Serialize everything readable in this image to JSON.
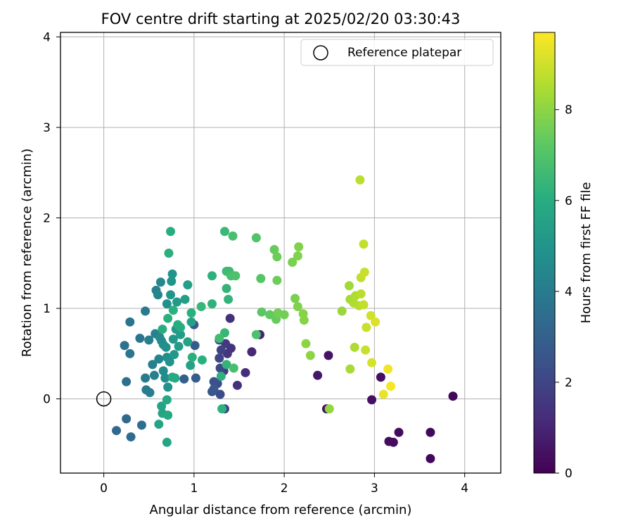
{
  "chart_data": {
    "type": "scatter",
    "title": "FOV centre drift starting at 2025/02/20 03:30:43",
    "xlabel": "Angular distance from reference (arcmin)",
    "ylabel": "Rotation from reference (arcmin)",
    "xlim": [
      -0.48,
      4.4
    ],
    "ylim": [
      -0.82,
      4.05
    ],
    "xticks": [
      0,
      1,
      2,
      3,
      4
    ],
    "yticks": [
      0,
      1,
      2,
      3,
      4
    ],
    "grid": true,
    "legend": {
      "placement": "top-right",
      "entries": [
        "Reference platepar"
      ]
    },
    "reference_point": {
      "x": 0,
      "y": 0,
      "label": "Reference platepar"
    },
    "colorbar": {
      "label": "Hours from first FF file",
      "colormap": "viridis",
      "range": [
        0,
        9.7
      ],
      "ticks": [
        0,
        2,
        4,
        6,
        8
      ]
    },
    "points": [
      {
        "x": 3.87,
        "y": 0.03,
        "c": 0.2
      },
      {
        "x": 3.62,
        "y": -0.37,
        "c": 0.2
      },
      {
        "x": 3.62,
        "y": -0.66,
        "c": 0.2
      },
      {
        "x": 3.27,
        "y": -0.37,
        "c": 0.3
      },
      {
        "x": 3.21,
        "y": -0.48,
        "c": 0.3
      },
      {
        "x": 3.16,
        "y": -0.47,
        "c": 0.3
      },
      {
        "x": 3.07,
        "y": 0.24,
        "c": 0.4
      },
      {
        "x": 2.97,
        "y": -0.01,
        "c": 0.4
      },
      {
        "x": 2.49,
        "y": 0.48,
        "c": 0.5
      },
      {
        "x": 2.47,
        "y": -0.11,
        "c": 0.5
      },
      {
        "x": 2.37,
        "y": 0.26,
        "c": 0.6
      },
      {
        "x": 1.73,
        "y": 0.71,
        "c": 1.0
      },
      {
        "x": 1.64,
        "y": 0.52,
        "c": 1.1
      },
      {
        "x": 1.57,
        "y": 0.29,
        "c": 1.2
      },
      {
        "x": 1.48,
        "y": 0.15,
        "c": 1.3
      },
      {
        "x": 1.4,
        "y": 0.89,
        "c": 1.3
      },
      {
        "x": 1.41,
        "y": 0.56,
        "c": 1.4
      },
      {
        "x": 1.37,
        "y": 0.5,
        "c": 1.5
      },
      {
        "x": 1.35,
        "y": 0.61,
        "c": 1.6
      },
      {
        "x": 1.33,
        "y": 0.31,
        "c": 1.7
      },
      {
        "x": 1.34,
        "y": -0.11,
        "c": 1.8
      },
      {
        "x": 1.3,
        "y": 0.54,
        "c": 1.9
      },
      {
        "x": 1.28,
        "y": 0.45,
        "c": 2.0
      },
      {
        "x": 1.29,
        "y": 0.34,
        "c": 2.1
      },
      {
        "x": 1.28,
        "y": 0.65,
        "c": 2.2
      },
      {
        "x": 1.29,
        "y": 0.05,
        "c": 2.2
      },
      {
        "x": 1.26,
        "y": 0.17,
        "c": 2.3
      },
      {
        "x": 1.22,
        "y": 0.19,
        "c": 2.4
      },
      {
        "x": 1.2,
        "y": 0.08,
        "c": 2.5
      },
      {
        "x": 1.22,
        "y": 0.11,
        "c": 2.6
      },
      {
        "x": 1.0,
        "y": 0.82,
        "c": 2.7
      },
      {
        "x": 1.01,
        "y": 0.59,
        "c": 2.8
      },
      {
        "x": 1.02,
        "y": 0.23,
        "c": 2.8
      },
      {
        "x": 0.89,
        "y": 0.22,
        "c": 3.0
      },
      {
        "x": 0.14,
        "y": -0.35,
        "c": 3.3
      },
      {
        "x": 0.25,
        "y": -0.22,
        "c": 3.3
      },
      {
        "x": 0.3,
        "y": -0.42,
        "c": 3.4
      },
      {
        "x": 0.42,
        "y": -0.29,
        "c": 3.5
      },
      {
        "x": 0.25,
        "y": 0.19,
        "c": 3.5
      },
      {
        "x": 0.23,
        "y": 0.59,
        "c": 3.6
      },
      {
        "x": 0.29,
        "y": 0.85,
        "c": 3.7
      },
      {
        "x": 0.29,
        "y": 0.5,
        "c": 3.8
      },
      {
        "x": 0.4,
        "y": 0.67,
        "c": 3.8
      },
      {
        "x": 0.46,
        "y": 0.97,
        "c": 3.9
      },
      {
        "x": 0.46,
        "y": 0.23,
        "c": 4.0
      },
      {
        "x": 0.47,
        "y": 0.1,
        "c": 4.0
      },
      {
        "x": 0.5,
        "y": 0.65,
        "c": 4.1
      },
      {
        "x": 0.51,
        "y": 0.07,
        "c": 4.1
      },
      {
        "x": 0.54,
        "y": 0.38,
        "c": 4.2
      },
      {
        "x": 0.56,
        "y": 0.26,
        "c": 4.2
      },
      {
        "x": 0.57,
        "y": 0.72,
        "c": 4.3
      },
      {
        "x": 0.58,
        "y": 1.2,
        "c": 4.3
      },
      {
        "x": 0.6,
        "y": 1.15,
        "c": 4.4
      },
      {
        "x": 0.61,
        "y": 0.44,
        "c": 4.4
      },
      {
        "x": 0.62,
        "y": 0.68,
        "c": 4.5
      },
      {
        "x": 0.63,
        "y": 1.29,
        "c": 4.5
      },
      {
        "x": 0.64,
        "y": 0.64,
        "c": 4.6
      },
      {
        "x": 0.66,
        "y": 0.31,
        "c": 4.6
      },
      {
        "x": 0.66,
        "y": 0.6,
        "c": 4.7
      },
      {
        "x": 0.68,
        "y": 0.23,
        "c": 4.7
      },
      {
        "x": 0.69,
        "y": 0.57,
        "c": 4.8
      },
      {
        "x": 0.7,
        "y": 0.46,
        "c": 4.8
      },
      {
        "x": 0.7,
        "y": 1.05,
        "c": 4.8
      },
      {
        "x": 0.71,
        "y": 0.13,
        "c": 4.9
      },
      {
        "x": 0.73,
        "y": 0.41,
        "c": 4.9
      },
      {
        "x": 0.74,
        "y": 1.15,
        "c": 5.0
      },
      {
        "x": 0.75,
        "y": 1.3,
        "c": 5.0
      },
      {
        "x": 0.76,
        "y": 1.38,
        "c": 5.0
      },
      {
        "x": 0.77,
        "y": 0.66,
        "c": 5.1
      },
      {
        "x": 0.78,
        "y": 0.49,
        "c": 5.1
      },
      {
        "x": 0.8,
        "y": 0.77,
        "c": 5.2
      },
      {
        "x": 0.81,
        "y": 1.07,
        "c": 5.2
      },
      {
        "x": 0.83,
        "y": 0.58,
        "c": 5.3
      },
      {
        "x": 0.85,
        "y": 0.71,
        "c": 5.3
      },
      {
        "x": 0.9,
        "y": 1.1,
        "c": 5.4
      },
      {
        "x": 0.93,
        "y": 1.26,
        "c": 5.4
      },
      {
        "x": 0.93,
        "y": 0.63,
        "c": 5.5
      },
      {
        "x": 0.96,
        "y": 0.37,
        "c": 5.5
      },
      {
        "x": 0.97,
        "y": 0.85,
        "c": 5.5
      },
      {
        "x": 0.61,
        "y": -0.28,
        "c": 5.6
      },
      {
        "x": 0.64,
        "y": -0.08,
        "c": 5.6
      },
      {
        "x": 0.65,
        "y": -0.16,
        "c": 5.7
      },
      {
        "x": 0.7,
        "y": -0.48,
        "c": 5.7
      },
      {
        "x": 0.7,
        "y": -0.01,
        "c": 5.8
      },
      {
        "x": 0.71,
        "y": -0.18,
        "c": 5.8
      },
      {
        "x": 0.76,
        "y": 0.24,
        "c": 5.9
      },
      {
        "x": 0.79,
        "y": 0.23,
        "c": 5.9
      },
      {
        "x": 0.82,
        "y": 0.82,
        "c": 6.0
      },
      {
        "x": 0.85,
        "y": 0.79,
        "c": 6.0
      },
      {
        "x": 0.65,
        "y": 0.77,
        "c": 6.0
      },
      {
        "x": 0.74,
        "y": 1.85,
        "c": 6.0
      },
      {
        "x": 0.72,
        "y": 1.61,
        "c": 6.1
      },
      {
        "x": 0.71,
        "y": 0.89,
        "c": 6.1
      },
      {
        "x": 0.77,
        "y": 0.98,
        "c": 6.1
      },
      {
        "x": 0.97,
        "y": 0.95,
        "c": 6.1
      },
      {
        "x": 0.98,
        "y": 0.46,
        "c": 6.1
      },
      {
        "x": 1.09,
        "y": 0.43,
        "c": 6.1
      },
      {
        "x": 1.2,
        "y": 1.36,
        "c": 6.2
      },
      {
        "x": 1.2,
        "y": 1.05,
        "c": 6.2
      },
      {
        "x": 1.3,
        "y": 0.25,
        "c": 6.2
      },
      {
        "x": 1.31,
        "y": -0.11,
        "c": 6.2
      },
      {
        "x": 1.36,
        "y": 1.22,
        "c": 6.3
      },
      {
        "x": 1.38,
        "y": 1.1,
        "c": 6.3
      },
      {
        "x": 1.36,
        "y": 0.38,
        "c": 6.3
      },
      {
        "x": 1.34,
        "y": 0.73,
        "c": 6.4
      },
      {
        "x": 1.08,
        "y": 1.02,
        "c": 6.4
      },
      {
        "x": 1.34,
        "y": 1.85,
        "c": 6.5
      },
      {
        "x": 1.36,
        "y": 1.41,
        "c": 6.6
      },
      {
        "x": 1.39,
        "y": 1.41,
        "c": 6.6
      },
      {
        "x": 1.28,
        "y": 0.67,
        "c": 6.7
      },
      {
        "x": 1.43,
        "y": 1.8,
        "c": 6.8
      },
      {
        "x": 1.41,
        "y": 1.36,
        "c": 6.8
      },
      {
        "x": 1.44,
        "y": 0.34,
        "c": 6.8
      },
      {
        "x": 1.46,
        "y": 1.36,
        "c": 6.9
      },
      {
        "x": 1.69,
        "y": 0.71,
        "c": 6.9
      },
      {
        "x": 1.69,
        "y": 1.78,
        "c": 7.0
      },
      {
        "x": 1.74,
        "y": 1.33,
        "c": 7.1
      },
      {
        "x": 1.75,
        "y": 0.96,
        "c": 7.2
      },
      {
        "x": 1.84,
        "y": 0.93,
        "c": 7.3
      },
      {
        "x": 1.89,
        "y": 1.65,
        "c": 7.4
      },
      {
        "x": 1.91,
        "y": 0.88,
        "c": 7.4
      },
      {
        "x": 1.92,
        "y": 1.31,
        "c": 7.5
      },
      {
        "x": 1.92,
        "y": 1.57,
        "c": 7.5
      },
      {
        "x": 1.93,
        "y": 0.95,
        "c": 7.6
      },
      {
        "x": 2.0,
        "y": 0.93,
        "c": 7.6
      },
      {
        "x": 2.09,
        "y": 1.51,
        "c": 7.7
      },
      {
        "x": 2.12,
        "y": 1.11,
        "c": 7.7
      },
      {
        "x": 2.15,
        "y": 1.02,
        "c": 7.8
      },
      {
        "x": 2.15,
        "y": 1.58,
        "c": 7.8
      },
      {
        "x": 2.16,
        "y": 1.68,
        "c": 7.8
      },
      {
        "x": 2.21,
        "y": 0.94,
        "c": 7.9
      },
      {
        "x": 2.22,
        "y": 0.87,
        "c": 7.9
      },
      {
        "x": 2.24,
        "y": 0.61,
        "c": 8.0
      },
      {
        "x": 2.29,
        "y": 0.48,
        "c": 8.0
      },
      {
        "x": 2.5,
        "y": -0.11,
        "c": 8.1
      },
      {
        "x": 2.64,
        "y": 0.97,
        "c": 8.2
      },
      {
        "x": 2.72,
        "y": 1.25,
        "c": 8.3
      },
      {
        "x": 2.73,
        "y": 0.33,
        "c": 8.4
      },
      {
        "x": 2.73,
        "y": 1.1,
        "c": 8.4
      },
      {
        "x": 2.77,
        "y": 1.06,
        "c": 8.5
      },
      {
        "x": 2.78,
        "y": 0.57,
        "c": 8.5
      },
      {
        "x": 2.79,
        "y": 1.14,
        "c": 8.5
      },
      {
        "x": 2.83,
        "y": 1.03,
        "c": 8.6
      },
      {
        "x": 2.84,
        "y": 2.42,
        "c": 8.7
      },
      {
        "x": 2.85,
        "y": 1.16,
        "c": 8.7
      },
      {
        "x": 2.85,
        "y": 1.34,
        "c": 8.8
      },
      {
        "x": 2.88,
        "y": 1.71,
        "c": 8.8
      },
      {
        "x": 2.88,
        "y": 1.04,
        "c": 8.8
      },
      {
        "x": 2.89,
        "y": 1.4,
        "c": 8.9
      },
      {
        "x": 2.9,
        "y": 0.54,
        "c": 8.9
      },
      {
        "x": 2.91,
        "y": 0.79,
        "c": 8.9
      },
      {
        "x": 2.96,
        "y": 0.92,
        "c": 9.0
      },
      {
        "x": 2.97,
        "y": 0.4,
        "c": 9.1
      },
      {
        "x": 3.01,
        "y": 0.85,
        "c": 9.2
      },
      {
        "x": 3.1,
        "y": 0.05,
        "c": 9.4
      },
      {
        "x": 3.15,
        "y": 0.33,
        "c": 9.5
      },
      {
        "x": 3.18,
        "y": 0.14,
        "c": 9.6
      }
    ]
  }
}
